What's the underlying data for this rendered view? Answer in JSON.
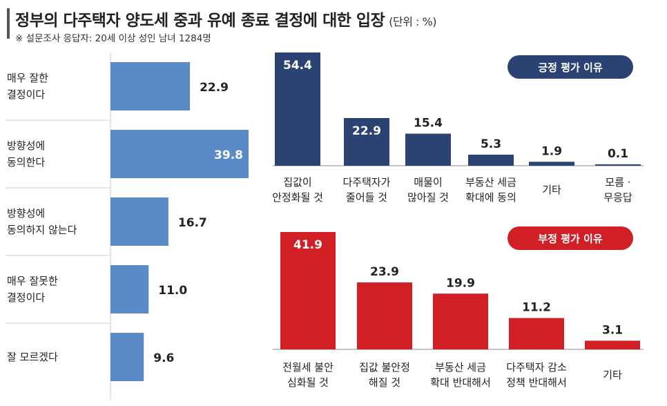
{
  "header": {
    "title": "정부의 다주택자 양도세 중과 유예 종료 결정에 대한 입장",
    "unit": "(단위 : %)",
    "note": "※ 설문조사 응답자: 20세 이상 성인 남녀 1284명"
  },
  "colors": {
    "left_bar": "#5b8ac9",
    "positive_bar": "#2b4372",
    "negative_bar": "#d11f26",
    "divider": "#cfcfcf"
  },
  "chart_data": [
    {
      "type": "bar",
      "orientation": "horizontal",
      "categories": [
        [
          "매우 잘한",
          "결정이다"
        ],
        [
          "방향성에",
          "동의한다"
        ],
        [
          "방향성에",
          "동의하지 않는다"
        ],
        [
          "매우 잘못한",
          "결정이다"
        ],
        [
          "잘 모르겠다"
        ]
      ],
      "values": [
        22.9,
        39.8,
        16.7,
        11.0,
        9.6
      ],
      "value_labels": [
        "22.9",
        "39.8",
        "16.7",
        "11.0",
        "9.6"
      ]
    },
    {
      "type": "bar",
      "title": "긍정 평가 이유",
      "categories": [
        [
          "집값이",
          "안정화될 것"
        ],
        [
          "다주택자가",
          "줄어들 것"
        ],
        [
          "매물이",
          "많아질 것"
        ],
        [
          "부동산 세금",
          "확대에 동의"
        ],
        [
          "기타"
        ],
        [
          "모름 ·",
          "무응답"
        ]
      ],
      "values": [
        54.4,
        22.9,
        15.4,
        5.3,
        1.9,
        0.1
      ],
      "value_labels": [
        "54.4",
        "22.9",
        "15.4",
        "5.3",
        "1.9",
        "0.1"
      ]
    },
    {
      "type": "bar",
      "title": "부정 평가 이유",
      "categories": [
        [
          "전월세 불안",
          "심화될 것"
        ],
        [
          "집값 불안정",
          "해질 것"
        ],
        [
          "부동산 세금",
          "확대 반대해서"
        ],
        [
          "다주택자 감소",
          "정책 반대해서"
        ],
        [
          "기타"
        ]
      ],
      "values": [
        41.9,
        23.9,
        19.9,
        11.2,
        3.1
      ],
      "value_labels": [
        "41.9",
        "23.9",
        "19.9",
        "11.2",
        "3.1"
      ]
    }
  ]
}
